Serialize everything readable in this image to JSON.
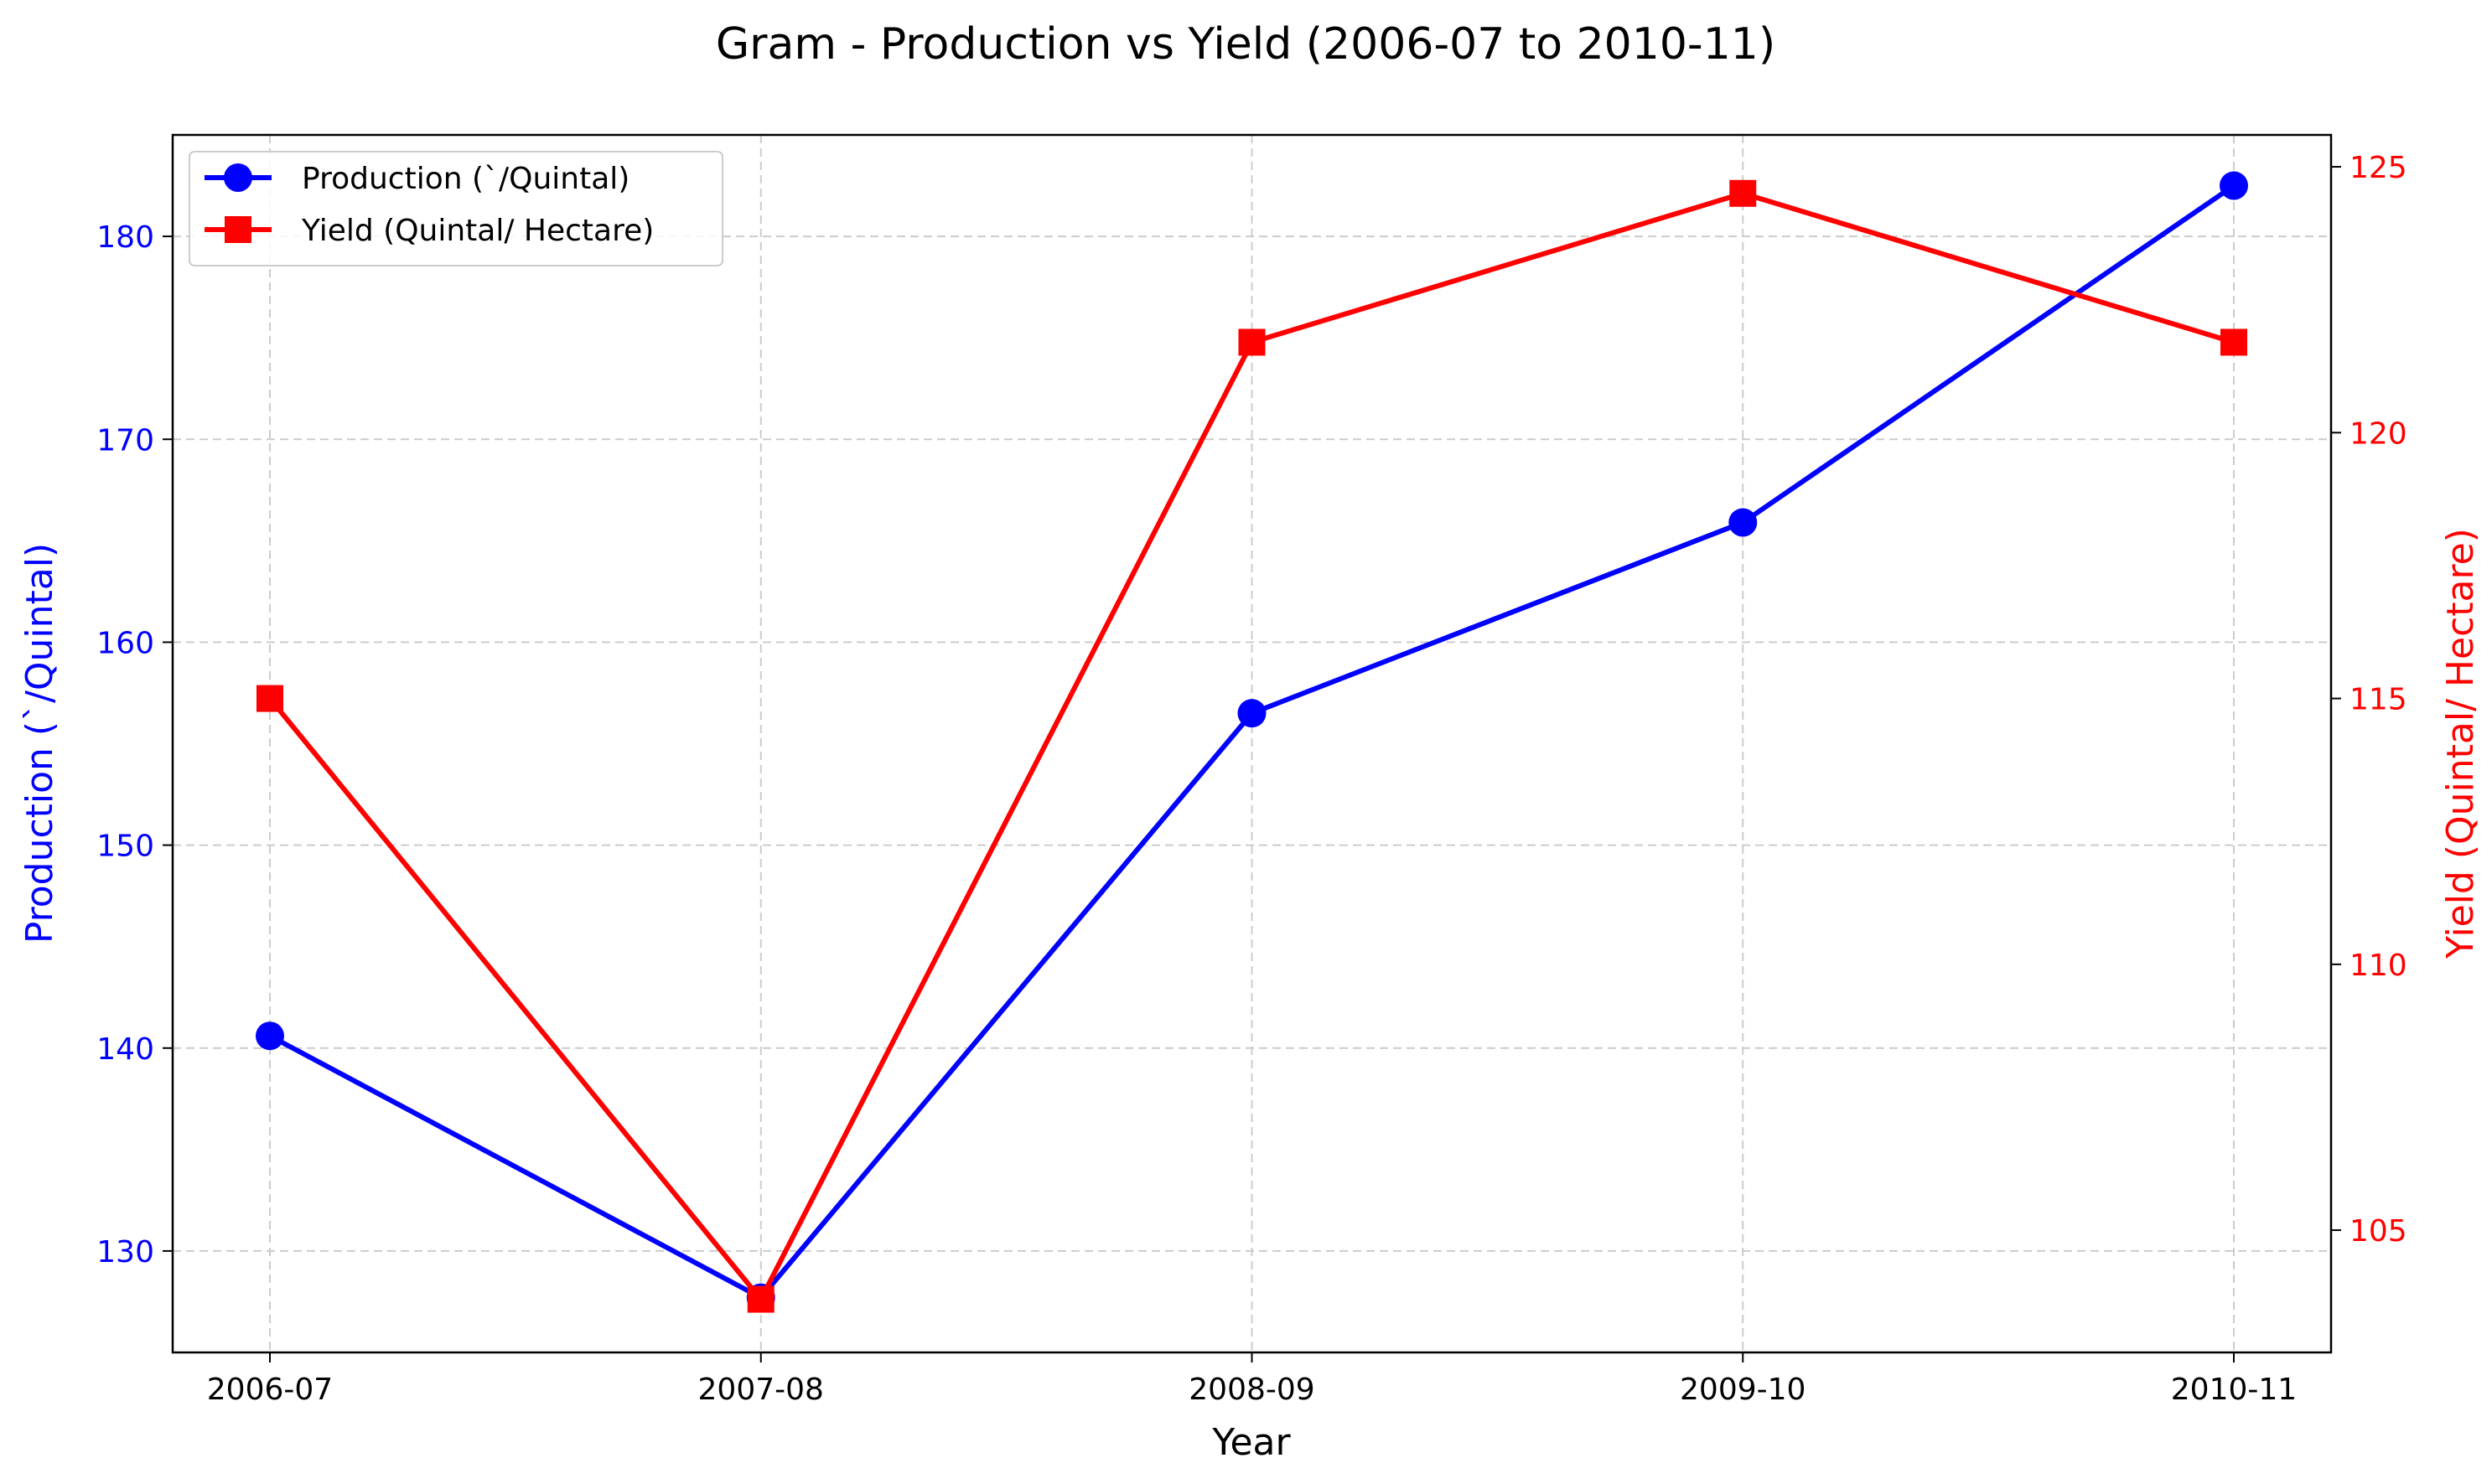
{
  "chart_data": {
    "type": "line",
    "title": "Gram - Production vs Yield (2006-07 to 2010-11)",
    "xlabel": "Year",
    "ylabel_left": "Production (`/Quintal)",
    "ylabel_right": "Yield (Quintal/ Hectare)",
    "categories": [
      "2006-07",
      "2007-08",
      "2008-09",
      "2009-10",
      "2010-11"
    ],
    "ylim_left": [
      125,
      185
    ],
    "ylim_right": [
      102.7,
      125.6
    ],
    "yticks_left": [
      130,
      140,
      150,
      160,
      170,
      180
    ],
    "yticks_right": [
      105,
      110,
      115,
      120,
      125
    ],
    "grid": true,
    "legend_position": "top-left",
    "series": [
      {
        "name": "Production (`/Quintal)",
        "axis": "left",
        "color": "#0000ff",
        "marker": "circle",
        "values": [
          140.6,
          127.7,
          156.5,
          165.9,
          182.5
        ]
      },
      {
        "name": "Yield (Quintal/ Hectare)",
        "axis": "right",
        "color": "#ff0000",
        "marker": "square",
        "values": [
          115.0,
          103.7,
          121.7,
          124.5,
          121.7
        ]
      }
    ],
    "colors": {
      "left_axis": "#0000ff",
      "right_axis": "#ff0000",
      "grid": "#cccccc"
    }
  }
}
